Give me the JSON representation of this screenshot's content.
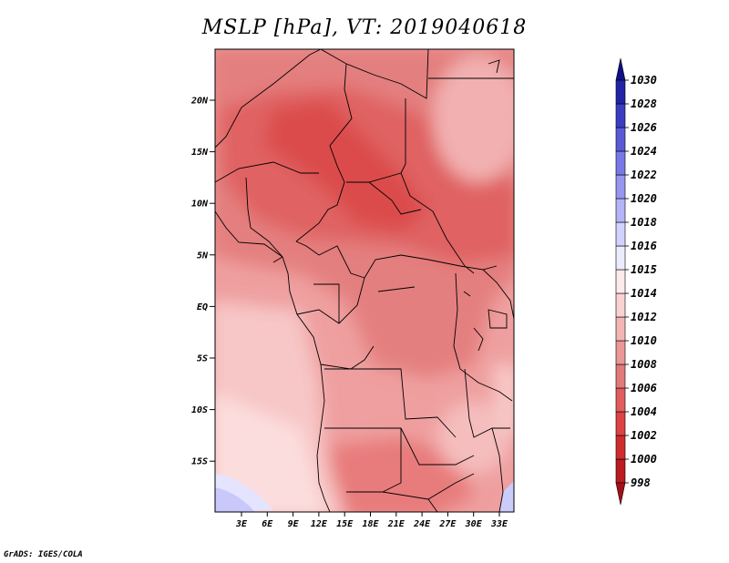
{
  "title": "MSLP [hPa], VT: 2019040618",
  "credit": "GrADS: IGES/COLA",
  "map": {
    "lat_labels": [
      "20N",
      "15N",
      "10N",
      "5N",
      "EQ",
      "5S",
      "10S",
      "15S"
    ],
    "lon_labels": [
      "3E",
      "6E",
      "9E",
      "12E",
      "15E",
      "18E",
      "21E",
      "24E",
      "27E",
      "30E",
      "33E"
    ]
  },
  "colorbar": {
    "levels": [
      "998",
      "1000",
      "1002",
      "1004",
      "1006",
      "1008",
      "1010",
      "1012",
      "1014",
      "1015",
      "1016",
      "1018",
      "1020",
      "1022",
      "1024",
      "1026",
      "1028",
      "1030"
    ],
    "colors": [
      "#a50f15",
      "#bc1c1f",
      "#cf2d2d",
      "#dd4343",
      "#e25d5d",
      "#e27a7a",
      "#eb9797",
      "#f3b6b6",
      "#fad2d2",
      "#fdeaea",
      "#ececff",
      "#d2d2ff",
      "#b4b4f8",
      "#9696f0",
      "#7878e6",
      "#5a5ad7",
      "#3c3cc3",
      "#2323a5",
      "#0f0f87"
    ]
  }
}
